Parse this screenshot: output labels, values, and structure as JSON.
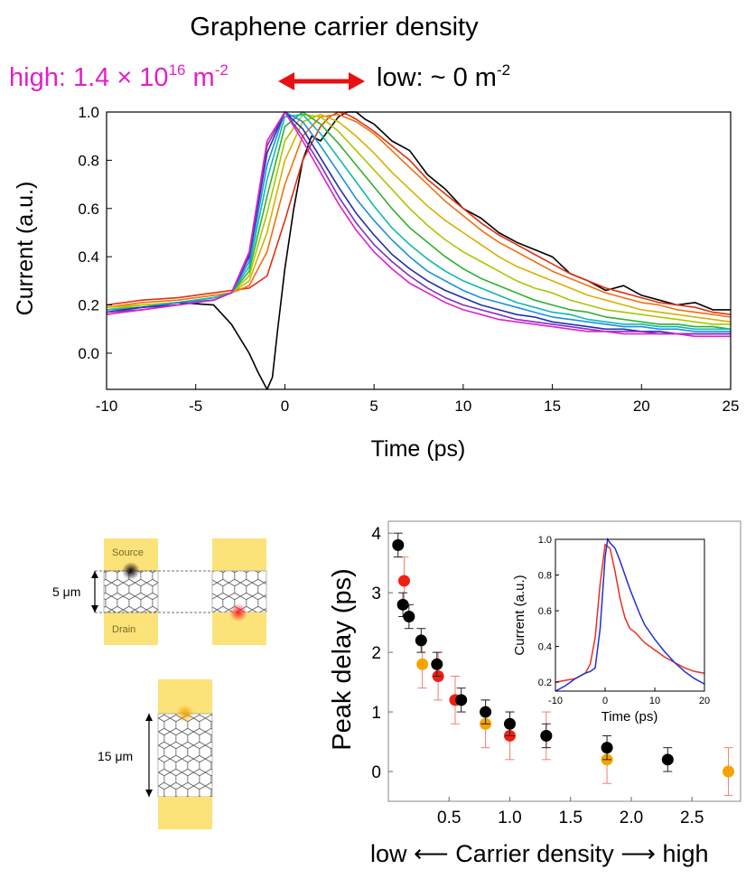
{
  "header": {
    "title": "Graphene carrier density",
    "high_prefix": "high: 1.4 × 10",
    "high_exp": "16",
    "high_unit": " m",
    "high_unit_exp": "-2",
    "low_prefix": "low: ~ 0 m",
    "low_unit_exp": "-2"
  },
  "colors": {
    "high": "#e020c8",
    "arrow": "#e81010",
    "pad": "#fbe37a",
    "orange_marker": "#f5a300",
    "red_marker": "#f02010"
  },
  "diagram": {
    "source_label": "Source",
    "drain_label": "Drain",
    "gap_5_label": "5 μm",
    "gap_15_label": "15 μm"
  },
  "bottom_xlabel": "low ⟵ Carrier density ⟶ high",
  "chart_data": [
    {
      "type": "line",
      "title": "",
      "xlabel": "Time (ps)",
      "ylabel": "Current (a.u.)",
      "xlim": [
        -10,
        25
      ],
      "ylim": [
        -0.15,
        1.0
      ],
      "xticks": [
        -10,
        -5,
        0,
        5,
        10,
        15,
        20,
        25
      ],
      "yticks": [
        0.0,
        0.2,
        0.4,
        0.6,
        0.8,
        1.0
      ],
      "ytick_labels": [
        "0.0",
        "0.2",
        "0.4",
        "0.6",
        "0.8",
        "1.0"
      ],
      "grid": false,
      "legend": "none",
      "series": [
        {
          "color": "#000000",
          "x": [
            -10,
            -8,
            -6,
            -4,
            -3,
            -2,
            -1.5,
            -1,
            -0.7,
            -0.4,
            0,
            0.5,
            1,
            1.5,
            2,
            2.5,
            3,
            3.5,
            4,
            4.5,
            5,
            6,
            7,
            8,
            9,
            10,
            11,
            12,
            13,
            14,
            15,
            16,
            17,
            18,
            19,
            20,
            21,
            22,
            23,
            24,
            25
          ],
          "y": [
            0.18,
            0.19,
            0.21,
            0.2,
            0.12,
            0.0,
            -0.08,
            -0.15,
            -0.1,
            0.1,
            0.35,
            0.6,
            0.8,
            0.9,
            0.88,
            0.93,
            0.98,
            1.0,
            1.0,
            0.97,
            0.95,
            0.88,
            0.84,
            0.74,
            0.68,
            0.6,
            0.56,
            0.5,
            0.46,
            0.43,
            0.4,
            0.33,
            0.3,
            0.26,
            0.28,
            0.24,
            0.22,
            0.2,
            0.21,
            0.18,
            0.18
          ]
        },
        {
          "color": "#e03010",
          "x": [
            -10,
            -8,
            -6,
            -4,
            -3,
            -2,
            -1,
            0,
            1,
            2,
            2.5,
            3,
            3.5,
            4,
            5,
            6,
            7,
            8,
            9,
            10,
            11,
            12,
            13,
            14,
            15,
            16,
            17,
            18,
            19,
            20,
            21,
            22,
            23,
            24,
            25
          ],
          "y": [
            0.2,
            0.22,
            0.23,
            0.25,
            0.26,
            0.27,
            0.32,
            0.55,
            0.8,
            0.94,
            0.98,
            1.0,
            0.99,
            0.97,
            0.92,
            0.86,
            0.8,
            0.72,
            0.66,
            0.6,
            0.54,
            0.49,
            0.45,
            0.41,
            0.37,
            0.33,
            0.3,
            0.27,
            0.25,
            0.23,
            0.21,
            0.2,
            0.19,
            0.17,
            0.16
          ]
        },
        {
          "color": "#f07010",
          "x": [
            -10,
            -8,
            -6,
            -4,
            -3,
            -2,
            -1,
            0,
            1,
            2,
            3,
            4,
            5,
            6,
            7,
            8,
            9,
            10,
            11,
            12,
            13,
            14,
            15,
            16,
            17,
            18,
            19,
            20,
            21,
            22,
            23,
            24,
            25
          ],
          "y": [
            0.19,
            0.21,
            0.22,
            0.24,
            0.25,
            0.28,
            0.42,
            0.7,
            0.9,
            0.98,
            0.99,
            0.96,
            0.91,
            0.84,
            0.77,
            0.7,
            0.63,
            0.57,
            0.51,
            0.46,
            0.42,
            0.38,
            0.34,
            0.31,
            0.28,
            0.25,
            0.23,
            0.21,
            0.2,
            0.18,
            0.17,
            0.16,
            0.15
          ]
        },
        {
          "color": "#d8b000",
          "x": [
            -10,
            -8,
            -6,
            -4,
            -3,
            -2,
            -1,
            0,
            1,
            2,
            3,
            4,
            5,
            6,
            7,
            8,
            9,
            10,
            11,
            12,
            13,
            14,
            15,
            16,
            17,
            18,
            19,
            20,
            21,
            22,
            23,
            24,
            25
          ],
          "y": [
            0.19,
            0.2,
            0.21,
            0.23,
            0.25,
            0.3,
            0.5,
            0.8,
            0.96,
            0.99,
            0.96,
            0.9,
            0.83,
            0.75,
            0.68,
            0.61,
            0.55,
            0.5,
            0.45,
            0.4,
            0.36,
            0.33,
            0.3,
            0.27,
            0.24,
            0.22,
            0.2,
            0.18,
            0.17,
            0.16,
            0.15,
            0.14,
            0.13
          ]
        },
        {
          "color": "#a8c800",
          "x": [
            -10,
            -8,
            -6,
            -4,
            -3,
            -2,
            -1,
            0,
            1,
            2,
            3,
            4,
            5,
            6,
            7,
            8,
            9,
            10,
            11,
            12,
            13,
            14,
            15,
            16,
            17,
            18,
            19,
            20,
            21,
            22,
            23,
            24,
            25
          ],
          "y": [
            0.18,
            0.2,
            0.21,
            0.23,
            0.25,
            0.32,
            0.58,
            0.88,
            0.99,
            0.98,
            0.92,
            0.84,
            0.76,
            0.68,
            0.6,
            0.53,
            0.47,
            0.42,
            0.38,
            0.34,
            0.3,
            0.27,
            0.25,
            0.22,
            0.2,
            0.18,
            0.17,
            0.16,
            0.15,
            0.14,
            0.13,
            0.12,
            0.12
          ]
        },
        {
          "color": "#30b030",
          "x": [
            -10,
            -8,
            -6,
            -4,
            -3,
            -2,
            -1,
            0,
            1,
            2,
            3,
            4,
            5,
            6,
            7,
            8,
            9,
            10,
            11,
            12,
            13,
            14,
            15,
            16,
            17,
            18,
            19,
            20,
            21,
            22,
            23,
            24,
            25
          ],
          "y": [
            0.18,
            0.19,
            0.21,
            0.23,
            0.25,
            0.34,
            0.65,
            0.94,
            1.0,
            0.95,
            0.87,
            0.78,
            0.69,
            0.6,
            0.52,
            0.46,
            0.4,
            0.35,
            0.31,
            0.28,
            0.25,
            0.22,
            0.2,
            0.18,
            0.17,
            0.15,
            0.14,
            0.13,
            0.12,
            0.12,
            0.11,
            0.11,
            0.1
          ]
        },
        {
          "color": "#10b8b0",
          "x": [
            -10,
            -8,
            -6,
            -4,
            -3,
            -2,
            -1,
            0,
            1,
            2,
            3,
            4,
            5,
            6,
            7,
            8,
            9,
            10,
            11,
            12,
            13,
            14,
            15,
            16,
            17,
            18,
            19,
            20,
            21,
            22,
            23,
            24,
            25
          ],
          "y": [
            0.18,
            0.19,
            0.21,
            0.23,
            0.25,
            0.36,
            0.72,
            0.98,
            0.99,
            0.91,
            0.81,
            0.71,
            0.61,
            0.52,
            0.45,
            0.39,
            0.34,
            0.3,
            0.27,
            0.24,
            0.21,
            0.19,
            0.17,
            0.16,
            0.14,
            0.13,
            0.12,
            0.12,
            0.11,
            0.11,
            0.1,
            0.1,
            0.1
          ]
        },
        {
          "color": "#1890e0",
          "x": [
            -10,
            -8,
            -6,
            -4,
            -3,
            -2,
            -1,
            0,
            1,
            2,
            3,
            4,
            5,
            6,
            7,
            8,
            9,
            10,
            11,
            12,
            13,
            14,
            15,
            16,
            17,
            18,
            19,
            20,
            21,
            22,
            23,
            24,
            25
          ],
          "y": [
            0.17,
            0.19,
            0.21,
            0.22,
            0.25,
            0.38,
            0.78,
            1.0,
            0.96,
            0.86,
            0.75,
            0.64,
            0.55,
            0.47,
            0.4,
            0.34,
            0.3,
            0.26,
            0.23,
            0.21,
            0.19,
            0.17,
            0.15,
            0.14,
            0.13,
            0.12,
            0.11,
            0.11,
            0.1,
            0.1,
            0.09,
            0.09,
            0.09
          ]
        },
        {
          "color": "#2030b0",
          "x": [
            -10,
            -8,
            -6,
            -4,
            -3,
            -2,
            -1,
            0,
            1,
            2,
            3,
            4,
            5,
            6,
            7,
            8,
            9,
            10,
            11,
            12,
            13,
            14,
            15,
            16,
            17,
            18,
            19,
            20,
            21,
            22,
            23,
            24,
            25
          ],
          "y": [
            0.17,
            0.19,
            0.2,
            0.22,
            0.25,
            0.4,
            0.83,
            1.0,
            0.93,
            0.81,
            0.69,
            0.58,
            0.49,
            0.41,
            0.35,
            0.3,
            0.26,
            0.23,
            0.2,
            0.18,
            0.16,
            0.15,
            0.13,
            0.12,
            0.11,
            0.1,
            0.1,
            0.09,
            0.09,
            0.08,
            0.08,
            0.08,
            0.08
          ]
        },
        {
          "color": "#8030c0",
          "x": [
            -10,
            -8,
            -6,
            -4,
            -3,
            -2,
            -1,
            0,
            1,
            2,
            3,
            4,
            5,
            6,
            7,
            8,
            9,
            10,
            11,
            12,
            13,
            14,
            15,
            16,
            17,
            18,
            19,
            20,
            21,
            22,
            23,
            24,
            25
          ],
          "y": [
            0.17,
            0.18,
            0.2,
            0.22,
            0.25,
            0.41,
            0.86,
            1.0,
            0.9,
            0.78,
            0.65,
            0.54,
            0.45,
            0.38,
            0.32,
            0.27,
            0.23,
            0.2,
            0.18,
            0.16,
            0.14,
            0.13,
            0.12,
            0.11,
            0.1,
            0.09,
            0.09,
            0.09,
            0.08,
            0.08,
            0.08,
            0.08,
            0.08
          ]
        },
        {
          "color": "#e020c8",
          "x": [
            -10,
            -8,
            -6,
            -4,
            -3,
            -2,
            -1,
            0,
            1,
            2,
            3,
            4,
            5,
            6,
            7,
            8,
            9,
            10,
            11,
            12,
            13,
            14,
            15,
            16,
            17,
            18,
            19,
            20,
            21,
            22,
            23,
            24,
            25
          ],
          "y": [
            0.16,
            0.18,
            0.2,
            0.22,
            0.25,
            0.42,
            0.88,
            1.0,
            0.88,
            0.75,
            0.62,
            0.51,
            0.42,
            0.35,
            0.29,
            0.25,
            0.21,
            0.18,
            0.16,
            0.14,
            0.13,
            0.12,
            0.11,
            0.1,
            0.09,
            0.09,
            0.08,
            0.08,
            0.08,
            0.08,
            0.07,
            0.07,
            0.07
          ]
        }
      ]
    },
    {
      "type": "scatter",
      "title": "",
      "xlabel": "",
      "ylabel": "Peak delay (ps)",
      "xlim": [
        0.0,
        2.9
      ],
      "ylim": [
        -0.5,
        4.2
      ],
      "xticks": [
        0.5,
        1.0,
        1.5,
        2.0,
        2.5
      ],
      "xtick_labels": [
        "0.5",
        "1.0",
        "1.5",
        "2.0",
        "2.5"
      ],
      "yticks": [
        0,
        1,
        2,
        3,
        4
      ],
      "grid": false,
      "legend": "none",
      "series": [
        {
          "color": "#000000",
          "x": [
            0.08,
            0.12,
            0.17,
            0.27,
            0.4,
            0.6,
            0.8,
            1.0,
            1.3,
            1.8,
            2.3
          ],
          "y": [
            3.8,
            2.8,
            2.6,
            2.2,
            1.8,
            1.2,
            1.0,
            0.8,
            0.6,
            0.4,
            0.2
          ],
          "err": [
            0.2,
            0.2,
            0.2,
            0.2,
            0.2,
            0.2,
            0.2,
            0.2,
            0.2,
            0.2,
            0.2
          ]
        },
        {
          "color": "#f02010",
          "x": [
            0.13,
            0.41,
            0.55,
            1.0,
            1.3
          ],
          "y": [
            3.2,
            1.6,
            1.2,
            0.6,
            0.6
          ],
          "err": [
            0.4,
            0.4,
            0.4,
            0.4,
            0.4
          ]
        },
        {
          "color": "#f5a300",
          "x": [
            0.28,
            0.8,
            1.8,
            2.8
          ],
          "y": [
            1.8,
            0.8,
            0.2,
            0.0
          ],
          "err": [
            0.4,
            0.4,
            0.4,
            0.4
          ]
        }
      ]
    },
    {
      "type": "line",
      "title": "",
      "xlabel": "Time (ps)",
      "ylabel": "Current (a.u.)",
      "xlim": [
        -10,
        20
      ],
      "ylim": [
        0.15,
        1.0
      ],
      "xticks": [
        -10,
        0,
        10,
        20
      ],
      "yticks": [
        0.2,
        0.4,
        0.6,
        0.8,
        1.0
      ],
      "ytick_labels": [
        "0.2",
        "0.4",
        "0.6",
        "0.8",
        "1.0"
      ],
      "grid": false,
      "legend": "none",
      "series": [
        {
          "color": "#e83020",
          "x": [
            -10,
            -8,
            -6,
            -4,
            -3,
            -2,
            -1,
            0,
            1,
            2,
            3,
            4,
            5,
            6,
            7,
            8,
            10,
            12,
            14,
            16,
            18,
            20
          ],
          "y": [
            0.2,
            0.21,
            0.22,
            0.25,
            0.3,
            0.45,
            0.75,
            0.97,
            0.95,
            0.82,
            0.67,
            0.56,
            0.5,
            0.48,
            0.45,
            0.42,
            0.38,
            0.34,
            0.31,
            0.28,
            0.26,
            0.25
          ]
        },
        {
          "color": "#2030d0",
          "x": [
            -10,
            -8,
            -6,
            -4,
            -3,
            -2,
            -1,
            0,
            0.5,
            1,
            2,
            3,
            4,
            5,
            6,
            7,
            8,
            10,
            12,
            14,
            16,
            18,
            20
          ],
          "y": [
            0.15,
            0.18,
            0.22,
            0.25,
            0.26,
            0.28,
            0.5,
            0.9,
            1.0,
            0.98,
            0.95,
            0.88,
            0.8,
            0.72,
            0.65,
            0.58,
            0.52,
            0.44,
            0.37,
            0.31,
            0.26,
            0.22,
            0.19
          ]
        }
      ]
    }
  ]
}
